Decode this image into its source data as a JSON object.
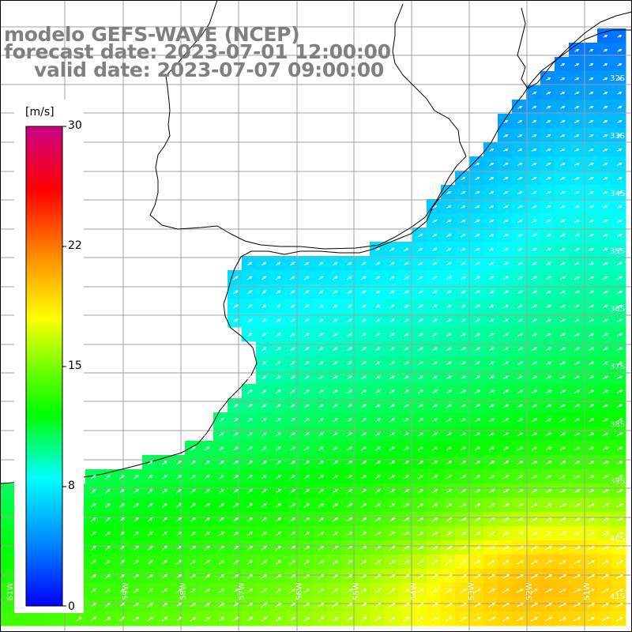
{
  "header": {
    "model": "modelo GEFS-WAVE (NCEP)",
    "forecast": "forecast date: 2023-07-01 12:00:00",
    "valid": "valid date: 2023-07-07 09:00:00"
  },
  "colorbar": {
    "unit": "[m/s]",
    "ticks": [
      "30",
      "22",
      "15",
      "8",
      "0"
    ],
    "range": [
      0,
      30
    ],
    "colors": [
      "#0000ff",
      "#0088ff",
      "#00ffff",
      "#00ff00",
      "#ffff00",
      "#ff8800",
      "#ff0000",
      "#cc0088"
    ]
  },
  "axes": {
    "lat_labels": [
      "32S",
      "33S",
      "34S",
      "35S",
      "36S",
      "37S",
      "38S",
      "39S",
      "40S",
      "41S"
    ],
    "lon_labels": [
      "61W",
      "60W",
      "59W",
      "58W",
      "57W",
      "56W",
      "55W",
      "54W",
      "53W",
      "52W",
      "51W"
    ]
  },
  "map": {
    "variable": "wind speed",
    "land_color": "#ffffff",
    "coast_color": "#000000",
    "grid_color": "#a0a0a0",
    "arrow_color": "#ffffff"
  }
}
